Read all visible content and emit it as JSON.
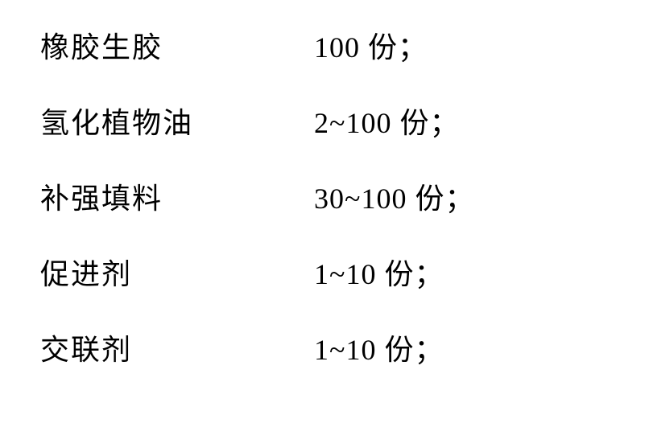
{
  "table": {
    "font_family": "SimSun",
    "font_size": 36,
    "text_color": "#000000",
    "background_color": "#ffffff",
    "row_spacing": 42,
    "label_width": 340,
    "rows": [
      {
        "label": "橡胶生胶",
        "value": "100 份；"
      },
      {
        "label": "氢化植物油",
        "value": "2~100 份；"
      },
      {
        "label": "补强填料",
        "value": "30~100 份；"
      },
      {
        "label": "促进剂",
        "value": "1~10 份；"
      },
      {
        "label": "交联剂",
        "value": "1~10 份；"
      }
    ]
  }
}
